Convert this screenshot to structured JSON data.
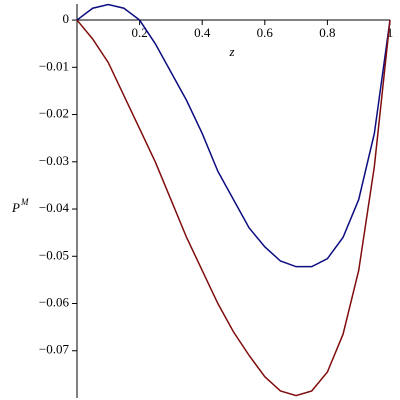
{
  "chart_data": {
    "type": "line",
    "x_label": "z",
    "y_label": "P",
    "y_label_superscript": "M",
    "x": [
      0,
      0.05,
      0.1,
      0.15,
      0.2,
      0.25,
      0.3,
      0.35,
      0.4,
      0.45,
      0.5,
      0.55,
      0.6,
      0.65,
      0.7,
      0.75,
      0.8,
      0.85,
      0.9,
      0.95,
      1
    ],
    "series": [
      {
        "color": "#0d0d80",
        "values": [
          0,
          0.0025,
          0.0033,
          0.0025,
          0,
          -0.005,
          -0.011,
          -0.017,
          -0.024,
          -0.032,
          -0.038,
          -0.044,
          -0.048,
          -0.051,
          -0.0522,
          -0.0522,
          -0.0505,
          -0.046,
          -0.038,
          -0.024,
          0
        ]
      },
      {
        "color": "#800d0d",
        "values": [
          0,
          -0.004,
          -0.009,
          -0.016,
          -0.023,
          -0.03,
          -0.038,
          -0.046,
          -0.053,
          -0.06,
          -0.066,
          -0.071,
          -0.0755,
          -0.0785,
          -0.0795,
          -0.0785,
          -0.0745,
          -0.0665,
          -0.053,
          -0.031,
          0
        ]
      }
    ],
    "xlim": [
      0,
      1
    ],
    "ylim": [
      -0.08,
      0.0034
    ],
    "xticks": [
      0.2,
      0.4,
      0.6,
      0.8,
      1
    ],
    "yticks": [
      0,
      {
        "value": -0.01,
        "label": "−0.01"
      },
      {
        "value": -0.02,
        "label": "−0.02"
      },
      {
        "value": -0.03,
        "label": "−0.03"
      },
      {
        "value": -0.04,
        "label": "−0.04"
      },
      {
        "value": -0.05,
        "label": "−0.05"
      },
      {
        "value": -0.06,
        "label": "−0.06"
      },
      {
        "value": -0.07,
        "label": "−0.07"
      }
    ]
  }
}
